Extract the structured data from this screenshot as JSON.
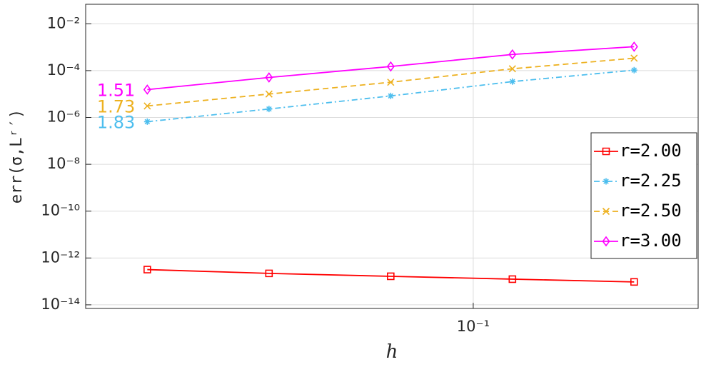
{
  "chart_data": {
    "type": "line",
    "xlabel": "h",
    "ylabel": "err(σ,Lʳ′)",
    "xscale": "log",
    "yscale": "log",
    "grid": true,
    "legend_position": "east",
    "x": [
      0.015625,
      0.03125,
      0.0625,
      0.125,
      0.25
    ],
    "xlim": [
      0.011,
      0.36
    ],
    "ylim": [
      7e-15,
      0.068
    ],
    "xticks": [
      {
        "value": 0.1,
        "label": "10⁻¹"
      }
    ],
    "yticks": [
      {
        "value": 1e-14,
        "label": "10⁻¹⁴"
      },
      {
        "value": 1e-12,
        "label": "10⁻¹²"
      },
      {
        "value": 1e-10,
        "label": "10⁻¹⁰"
      },
      {
        "value": 1e-08,
        "label": "10⁻⁸"
      },
      {
        "value": 1e-06,
        "label": "10⁻⁶"
      },
      {
        "value": 0.0001,
        "label": "10⁻⁴"
      },
      {
        "value": 0.01,
        "label": "10⁻²"
      }
    ],
    "series": [
      {
        "name": "r=2.00",
        "color": "#ff0000",
        "marker": "square",
        "dash": "solid",
        "values": [
          3.2e-13,
          2.2e-13,
          1.65e-13,
          1.25e-13,
          9.5e-14
        ]
      },
      {
        "name": "r=2.25",
        "color": "#4dbeee",
        "marker": "asterisk",
        "dash": "dashdot",
        "values": [
          6.6e-07,
          2.3e-06,
          8.3e-06,
          3.4e-05,
          0.000105
        ],
        "annotation": "1.83"
      },
      {
        "name": "r=2.50",
        "color": "#edb120",
        "marker": "x",
        "dash": "dashed",
        "values": [
          3.1e-06,
          1e-05,
          3.2e-05,
          0.00012,
          0.00034
        ],
        "annotation": "1.73"
      },
      {
        "name": "r=3.00",
        "color": "#ff00ff",
        "marker": "diamond",
        "dash": "solid",
        "values": [
          1.55e-05,
          5.1e-05,
          0.00015,
          0.00049,
          0.00105
        ],
        "annotation": "1.51"
      }
    ]
  }
}
